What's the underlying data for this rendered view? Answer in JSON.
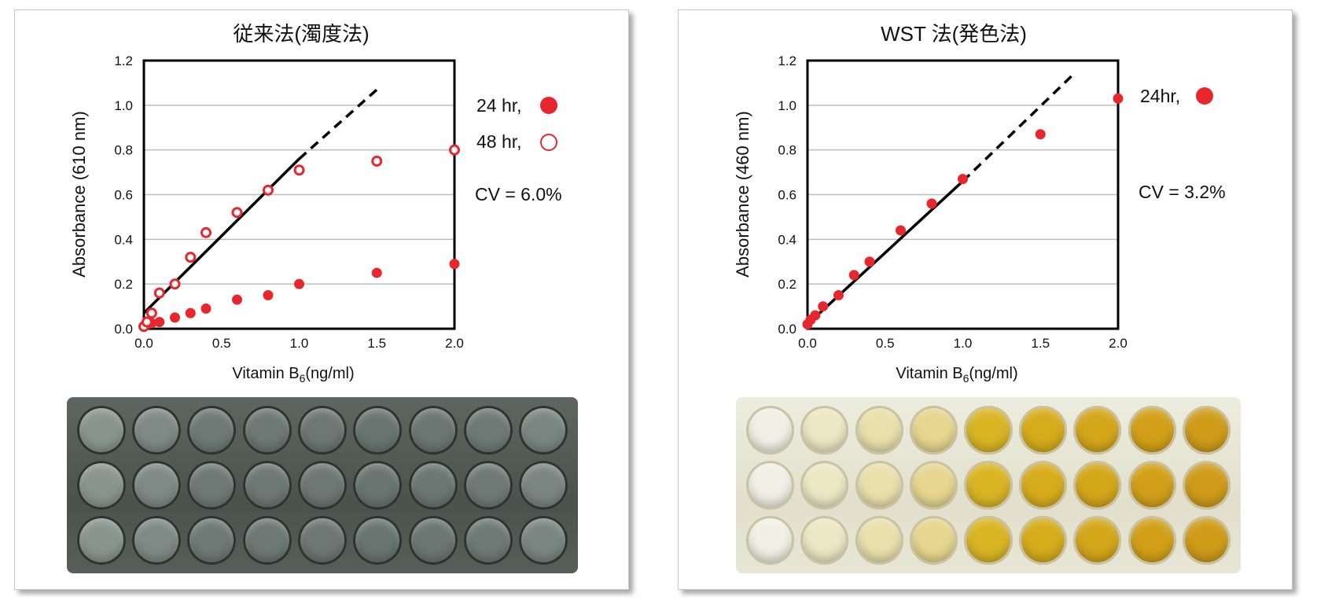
{
  "chart_data": [
    {
      "type": "scatter",
      "title": "従来法(濁度法)",
      "xlabel": "Vitamin B",
      "xlabel_subscript": "6",
      "xlabel_unit": "(ng/ml)",
      "ylabel": "Absorbance (610 nm)",
      "xlim": [
        0,
        2.0
      ],
      "ylim": [
        0,
        1.2
      ],
      "xticks": [
        "0.0",
        "0.5",
        "1.0",
        "1.5",
        "2.0"
      ],
      "yticks": [
        "0.0",
        "0.2",
        "0.4",
        "0.6",
        "0.8",
        "1.0",
        "1.2"
      ],
      "series": [
        {
          "name": "24 hr,",
          "marker": "filled",
          "x": [
            0.0,
            0.02,
            0.05,
            0.1,
            0.2,
            0.3,
            0.4,
            0.6,
            0.8,
            1.0,
            1.5,
            2.0
          ],
          "y": [
            0.01,
            0.02,
            0.025,
            0.03,
            0.05,
            0.07,
            0.09,
            0.13,
            0.15,
            0.2,
            0.25,
            0.29
          ]
        },
        {
          "name": "48 hr,",
          "marker": "open",
          "x": [
            0.0,
            0.02,
            0.05,
            0.1,
            0.2,
            0.3,
            0.4,
            0.6,
            0.8,
            1.0,
            1.5,
            2.0
          ],
          "y": [
            0.01,
            0.03,
            0.07,
            0.16,
            0.2,
            0.32,
            0.43,
            0.52,
            0.62,
            0.71,
            0.75,
            0.8
          ]
        }
      ],
      "fit_line": {
        "solid": [
          [
            0.0,
            0.07
          ],
          [
            1.0,
            0.76
          ]
        ],
        "dashed": [
          [
            1.0,
            0.76
          ],
          [
            1.5,
            1.07
          ]
        ]
      },
      "annotation": "CV = 6.0%",
      "colors": {
        "marker": "#e8262d",
        "line": "#000000",
        "grid": "#bdbdbd"
      }
    },
    {
      "type": "scatter",
      "title": "WST 法(発色法)",
      "xlabel": "Vitamin B",
      "xlabel_subscript": "6",
      "xlabel_unit": "(ng/ml)",
      "ylabel": "Absorbance (460 nm)",
      "xlim": [
        0,
        2.0
      ],
      "ylim": [
        0,
        1.2
      ],
      "xticks": [
        "0.0",
        "0.5",
        "1.0",
        "1.5",
        "2.0"
      ],
      "yticks": [
        "0.0",
        "0.2",
        "0.4",
        "0.6",
        "0.8",
        "1.0",
        "1.2"
      ],
      "series": [
        {
          "name": "24hr,",
          "marker": "filled",
          "x": [
            0.0,
            0.02,
            0.05,
            0.1,
            0.2,
            0.3,
            0.4,
            0.6,
            0.8,
            1.0,
            1.5,
            2.0
          ],
          "y": [
            0.02,
            0.04,
            0.06,
            0.1,
            0.15,
            0.24,
            0.3,
            0.44,
            0.56,
            0.67,
            0.87,
            1.03
          ]
        }
      ],
      "fit_line": {
        "solid": [
          [
            0.0,
            0.02
          ],
          [
            1.0,
            0.66
          ]
        ],
        "dashed": [
          [
            1.0,
            0.66
          ],
          [
            1.7,
            1.13
          ]
        ]
      },
      "annotation": "CV = 3.2%",
      "colors": {
        "marker": "#e8262d",
        "line": "#000000",
        "grid": "#bdbdbd"
      }
    }
  ],
  "plates": {
    "left": {
      "description_colors": [
        "#8a9590",
        "#7f8a86",
        "#6f7a77",
        "#6e7875",
        "#6d7774",
        "#6a7572",
        "#6c7774",
        "#6f7a77",
        "#7b8683"
      ],
      "rim": "#2d3330"
    },
    "right": {
      "description_colors": [
        "#f1f0e6",
        "#ede7c4",
        "#e9e0ac",
        "#e6d68f",
        "#d9b524",
        "#d6ac1c",
        "#d4a61a",
        "#d2a018",
        "#cf9c1a"
      ],
      "rim": "#c9c2a3"
    }
  }
}
